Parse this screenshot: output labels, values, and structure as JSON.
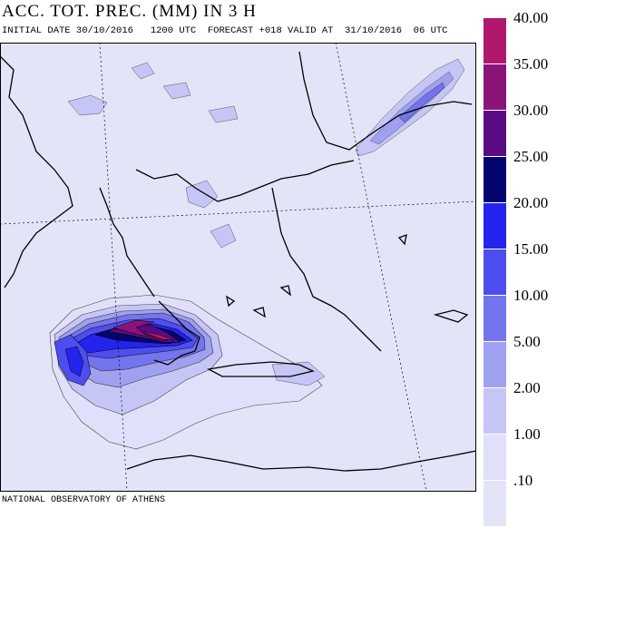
{
  "header": {
    "title": "ACC. TOT. PREC. (MM) IN 3 H",
    "subtitle": "INITIAL DATE 30/10/2016   1200 UTC  FORECAST +018 VALID AT  31/10/2016  06 UTC"
  },
  "footer": {
    "credit": "NATIONAL OBSERVATORY OF ATHENS"
  },
  "legend": {
    "items": [
      {
        "label": "40.00",
        "color": "#b0186e"
      },
      {
        "label": "35.00",
        "color": "#8a1478"
      },
      {
        "label": "30.00",
        "color": "#5a0a82"
      },
      {
        "label": "25.00",
        "color": "#050570"
      },
      {
        "label": "20.00",
        "color": "#2424ee"
      },
      {
        "label": "15.00",
        "color": "#4e4ef0"
      },
      {
        "label": "10.00",
        "color": "#7474ee"
      },
      {
        "label": "5.00",
        "color": "#a0a0f0"
      },
      {
        "label": "2.00",
        "color": "#c6c6f6"
      },
      {
        "label": "1.00",
        "color": "#e0e0fa"
      },
      {
        "label": ".10",
        "color": "#ffffff"
      }
    ]
  },
  "map": {
    "background_color": "#e4e4f8",
    "region": "Greece / Aegean Sea / Turkey"
  }
}
